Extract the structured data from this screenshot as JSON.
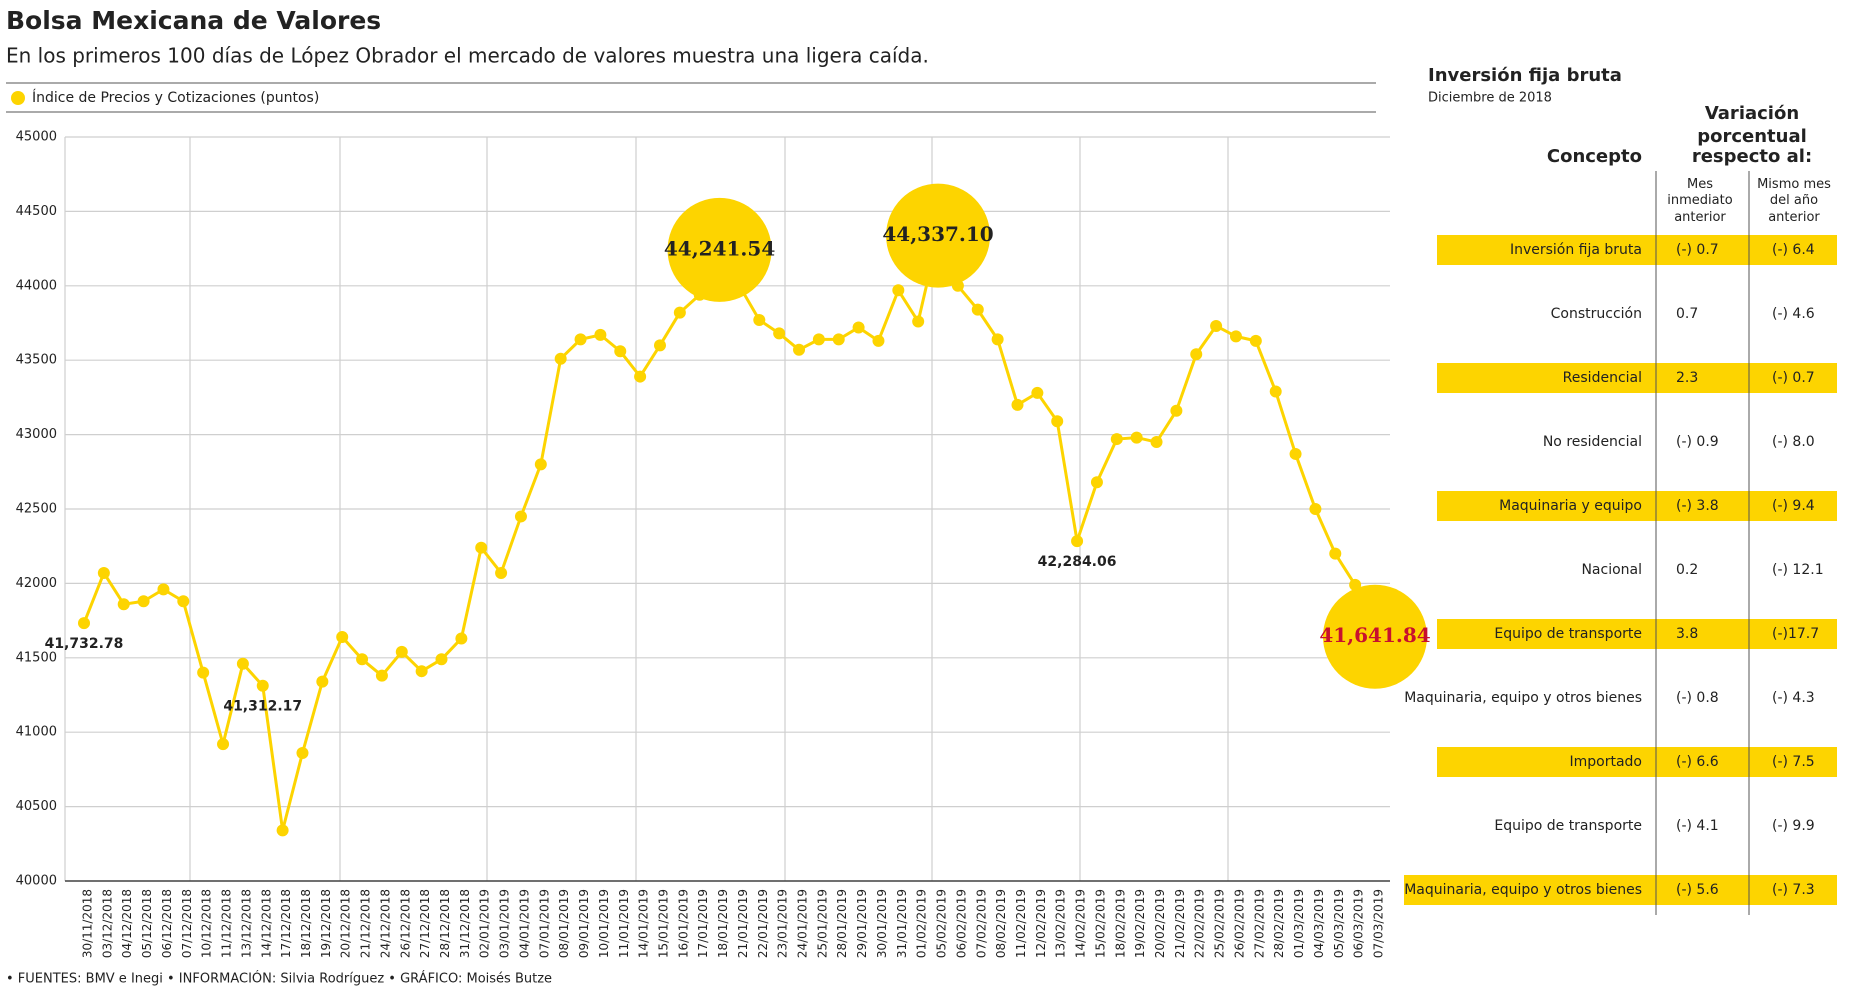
{
  "chart_data": {
    "type": "line",
    "title": "Bolsa Mexicana de Valores",
    "subtitle": "En los primeros 100 días de López Obrador el mercado de valores muestra una ligera caída.",
    "footer": "• FUENTES: BMV e Inegi • INFORMACIÓN: Silvia Rodríguez • GRÁFICO: Moisés Butze",
    "categories": [
      "30/11/2018",
      "03/12/2018",
      "04/12/2018",
      "05/12/2018",
      "06/12/2018",
      "07/12/2018",
      "10/12/2018",
      "11/12/2018",
      "13/12/2018",
      "14/12/2018",
      "17/12/2018",
      "18/12/2018",
      "19/12/2018",
      "20/12/2018",
      "21/12/2018",
      "24/12/2018",
      "26/12/2018",
      "27/12/2018",
      "28/12/2018",
      "31/12/2018",
      "02/01/2019",
      "03/01/2019",
      "04/01/2019",
      "07/01/2019",
      "08/01/2019",
      "09/01/2019",
      "10/01/2019",
      "11/01/2019",
      "14/01/2019",
      "15/01/2019",
      "16/01/2019",
      "17/01/2019",
      "18/01/2019",
      "21/01/2019",
      "22/01/2019",
      "23/01/2019",
      "24/01/2019",
      "25/01/2019",
      "28/01/2019",
      "29/01/2019",
      "30/01/2019",
      "31/01/2019",
      "01/02/2019",
      "05/02/2019",
      "06/02/2019",
      "07/02/2019",
      "08/02/2019",
      "11/02/2019",
      "12/02/2019",
      "13/02/2019",
      "14/02/2019",
      "15/02/2019",
      "18/02/2019",
      "19/02/2019",
      "20/02/2019",
      "21/02/2019",
      "22/02/2019",
      "25/02/2019",
      "26/02/2019",
      "27/02/2019",
      "28/02/2019",
      "01/03/2019",
      "04/03/2019",
      "05/03/2019",
      "06/03/2019",
      "07/03/2019"
    ],
    "series": [
      {
        "name": "Índice de Precios y Cotizaciones (puntos)",
        "color": "#fdd400",
        "values": [
          41732.78,
          42070,
          41860,
          41880,
          41960,
          41880,
          41400,
          40920,
          41460,
          41312.17,
          40340,
          40860,
          41340,
          41640,
          41490,
          41380,
          41540,
          41410,
          41490,
          41630,
          42240,
          42070,
          42450,
          42800,
          43510,
          43640,
          43670,
          43560,
          43390,
          43600,
          43820,
          43940,
          44241.54,
          44000,
          43770,
          43680,
          43570,
          43640,
          43640,
          43720,
          43630,
          43970,
          43760,
          44337.1,
          44000,
          43840,
          43640,
          43200,
          43280,
          43090,
          42284.06,
          42680,
          42970,
          42980,
          42950,
          43160,
          43540,
          43730,
          43660,
          43630,
          43290,
          42870,
          42500,
          42200,
          41990,
          41641.84
        ],
        "value_labels": [
          "41,732.78",
          null,
          null,
          null,
          null,
          null,
          null,
          null,
          null,
          "41,312.17",
          null,
          null,
          null,
          null,
          null,
          null,
          null,
          null,
          null,
          null,
          null,
          null,
          null,
          null,
          null,
          null,
          null,
          null,
          null,
          null,
          null,
          null,
          "44,241.54",
          null,
          null,
          null,
          null,
          null,
          null,
          null,
          null,
          null,
          null,
          "44,337.10",
          null,
          null,
          null,
          null,
          null,
          null,
          "42,284.06",
          null,
          null,
          null,
          null,
          null,
          null,
          null,
          null,
          null,
          null,
          null,
          null,
          null,
          null,
          "41,641.84"
        ]
      }
    ],
    "ylim": [
      40000,
      45000
    ],
    "yticks": [
      40000,
      40500,
      41000,
      41500,
      42000,
      42500,
      43000,
      43500,
      44000,
      44500,
      45000
    ],
    "grid": true
  },
  "table": {
    "title": "Inversión fija bruta",
    "subtitle": "Diciembre de 2018",
    "header": {
      "concept": "Concepto",
      "group": "Variación porcentual respecto al:",
      "col1": "Mes inmediato anterior",
      "col2": "Mismo mes del año anterior"
    },
    "rows": [
      [
        "Inversión fija bruta",
        "(-) 0.7",
        "(-) 6.4"
      ],
      [
        "Construcción",
        "0.7",
        "(-) 4.6"
      ],
      [
        "Residencial",
        "2.3",
        "(-) 0.7"
      ],
      [
        "No residencial",
        "(-) 0.9",
        "(-) 8.0"
      ],
      [
        "Maquinaria y equipo",
        "(-) 3.8",
        "(-) 9.4"
      ],
      [
        "Nacional",
        "0.2",
        "(-) 12.1"
      ],
      [
        "Equipo de transporte",
        "3.8",
        "(-)17.7"
      ],
      [
        "Maquinaria, equipo y otros bienes",
        "(-) 0.8",
        "(-) 4.3"
      ],
      [
        "Importado",
        "(-) 6.6",
        "(-) 7.5"
      ],
      [
        "Equipo de transporte",
        "(-) 4.1",
        "(-) 9.9"
      ],
      [
        "Maquinaria, equipo y otros bienes",
        "(-) 5.6",
        "(-) 7.3"
      ]
    ]
  }
}
